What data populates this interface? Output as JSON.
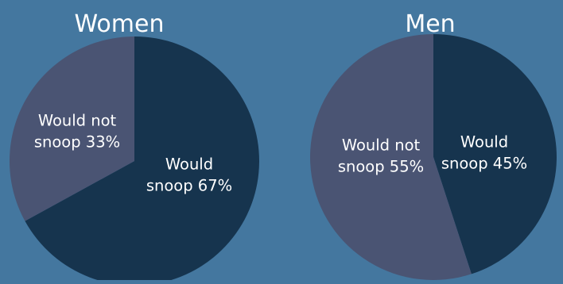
{
  "chart_data": [
    {
      "type": "pie",
      "title": "Women",
      "slices": [
        {
          "label_lines": [
            "Would",
            "snoop 67%"
          ],
          "value": 67,
          "color": "#16344e"
        },
        {
          "label_lines": [
            "Would not",
            "snoop 33%"
          ],
          "value": 33,
          "color": "#4a5473"
        }
      ]
    },
    {
      "type": "pie",
      "title": "Men",
      "slices": [
        {
          "label_lines": [
            "Would",
            "snoop 45%"
          ],
          "value": 45,
          "color": "#16344e"
        },
        {
          "label_lines": [
            "Would not",
            "snoop 55%"
          ],
          "value": 55,
          "color": "#4a5473"
        }
      ]
    }
  ]
}
